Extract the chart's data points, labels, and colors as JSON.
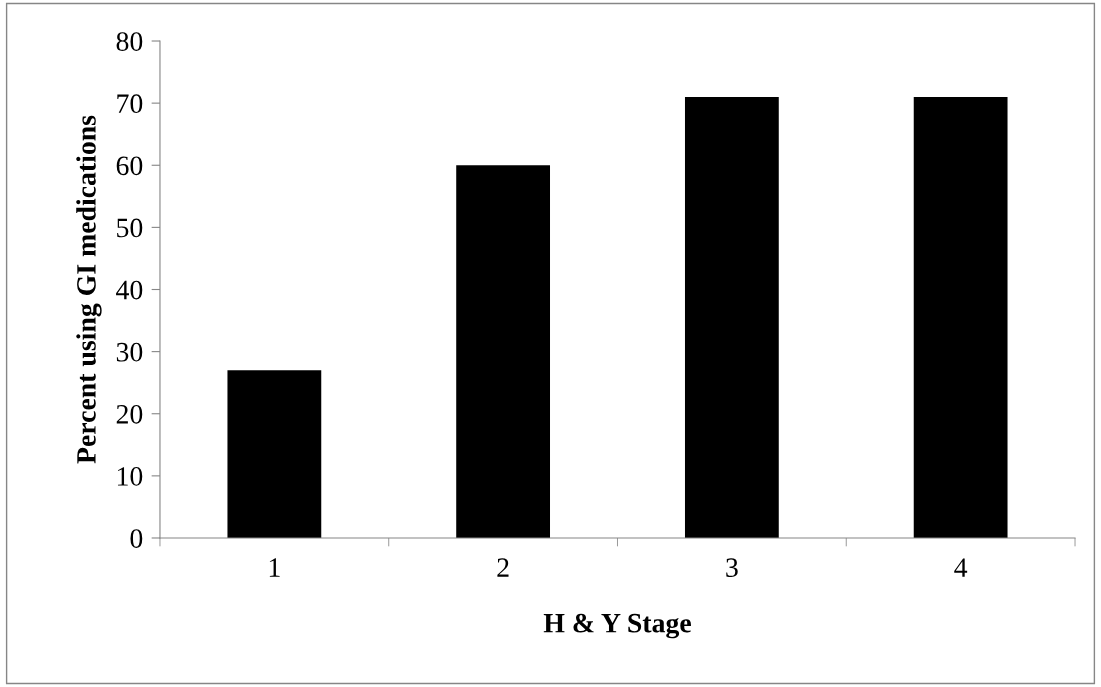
{
  "chart_data": {
    "type": "bar",
    "xlabel": "H & Y Stage",
    "ylabel": "Percent using GI medications",
    "categories": [
      "1",
      "2",
      "3",
      "4"
    ],
    "values": [
      27,
      60,
      71,
      71
    ],
    "color": "#000000",
    "ylim": [
      0,
      80
    ],
    "yticks": [
      0,
      10,
      20,
      30,
      40,
      50,
      60,
      70,
      80
    ],
    "grid": false,
    "legend": false
  }
}
